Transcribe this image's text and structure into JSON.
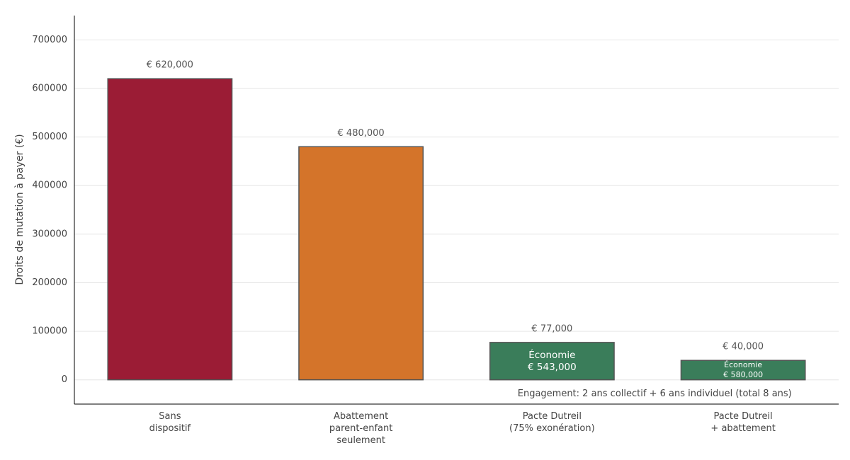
{
  "chart_data": {
    "type": "bar",
    "y_label": "Droits de mutation à payer (€)",
    "categories": [
      "Sans\ndispositif",
      "Abattement\nparent-enfant\nseulement",
      "Pacte Dutreil\n(75% exonération)",
      "Pacte Dutreil\n+ abattement"
    ],
    "values": [
      620000,
      480000,
      77000,
      40000
    ],
    "value_labels": [
      "€ 620,000",
      "€ 480,000",
      "€ 77,000",
      "€ 40,000"
    ],
    "colors": [
      "#9b1c35",
      "#d4742a",
      "#3a7d5a",
      "#3a7d5a"
    ],
    "savings_labels": [
      null,
      null,
      "Économie\n€ 543,000",
      "Économie\n€ 580,000"
    ],
    "note": "Engagement: 2 ans collectif + 6 ans individuel (total 8 ans)",
    "ylim": [
      -50000,
      750000
    ],
    "yticks": [
      0,
      100000,
      200000,
      300000,
      400000,
      500000,
      600000,
      700000
    ],
    "grid": true
  }
}
